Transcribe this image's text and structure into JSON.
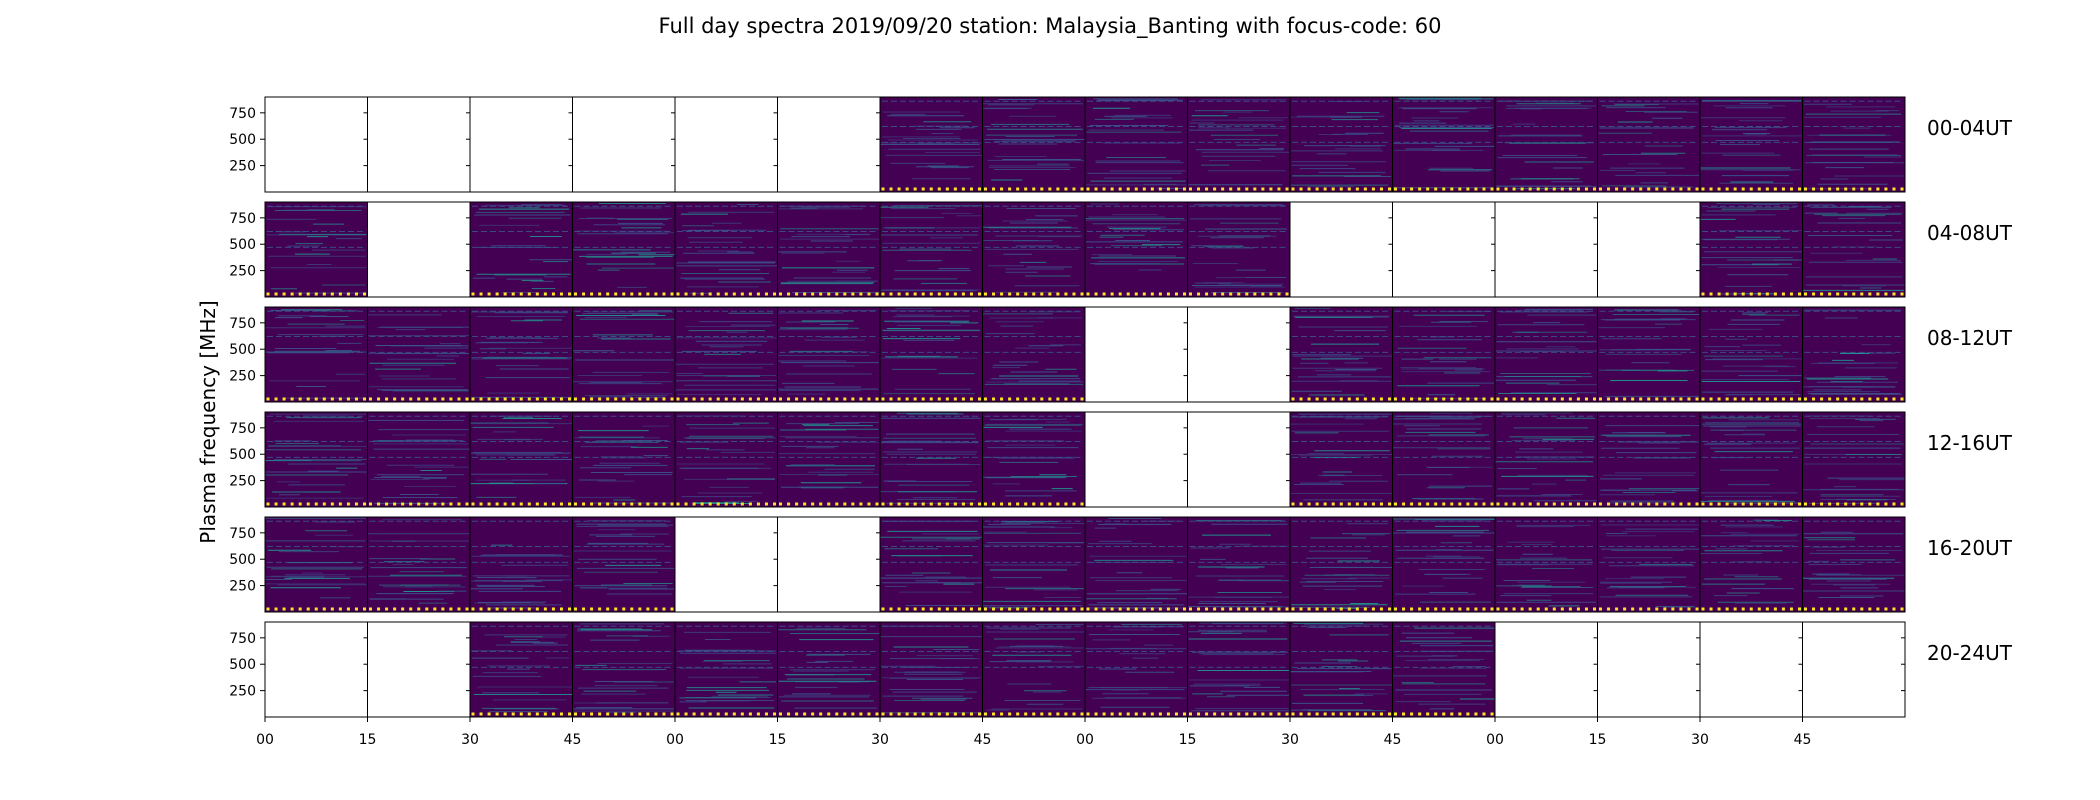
{
  "chart_data": {
    "type": "heatmap",
    "title": "Full day spectra 2019/09/20 station: Malaysia_Banting with focus-code: 60",
    "ylabel": "Plasma frequency [MHz]",
    "xlabel": "",
    "ytick_labels": [
      "750",
      "500",
      "250"
    ],
    "yticks": [
      750,
      500,
      250
    ],
    "ylim": [
      0,
      900
    ],
    "xtick_labels": [
      "00",
      "15",
      "30",
      "45",
      "00",
      "15",
      "30",
      "45",
      "00",
      "15",
      "30",
      "45",
      "00",
      "15",
      "30",
      "45"
    ],
    "rows": [
      {
        "label": "00-04UT",
        "data": [
          0,
          0,
          0,
          0,
          0,
          0,
          1,
          1,
          1,
          1,
          1,
          1,
          1,
          1,
          1,
          1
        ]
      },
      {
        "label": "04-08UT",
        "data": [
          1,
          0,
          1,
          1,
          1,
          1,
          1,
          1,
          1,
          1,
          0,
          0,
          0,
          0,
          1,
          1
        ]
      },
      {
        "label": "08-12UT",
        "data": [
          1,
          1,
          1,
          1,
          1,
          1,
          1,
          1,
          0,
          0,
          1,
          1,
          1,
          1,
          1,
          1
        ]
      },
      {
        "label": "12-16UT",
        "data": [
          1,
          1,
          1,
          1,
          1,
          1,
          1,
          1,
          0,
          0,
          1,
          1,
          1,
          1,
          1,
          1
        ]
      },
      {
        "label": "16-20UT",
        "data": [
          1,
          1,
          1,
          1,
          0,
          0,
          1,
          1,
          1,
          1,
          1,
          1,
          1,
          1,
          1,
          1
        ]
      },
      {
        "label": "20-24UT",
        "data": [
          0,
          0,
          1,
          1,
          1,
          1,
          1,
          1,
          1,
          1,
          1,
          1,
          0,
          0,
          0,
          0
        ]
      }
    ],
    "grid": false,
    "colors": {
      "background": "#440154",
      "line": "#3b528b",
      "bright": "#21918c",
      "marker": "#fde725",
      "empty": "#ffffff",
      "border": "#000000"
    }
  }
}
